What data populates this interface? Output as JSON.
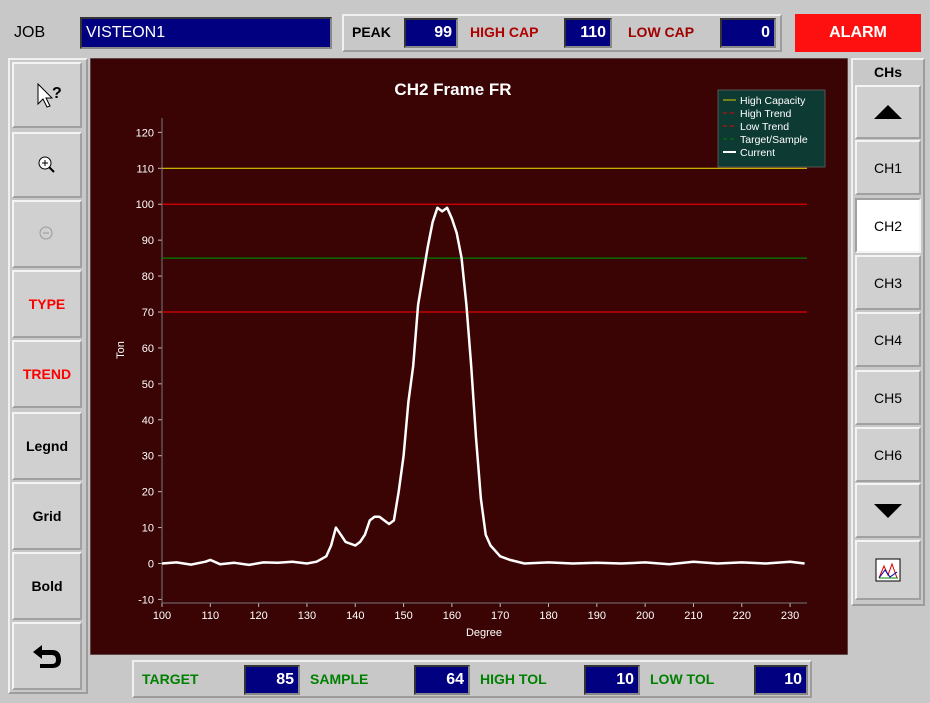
{
  "header": {
    "job_label": "JOB",
    "job": "VISTEON1",
    "peak_label": "PEAK",
    "peak": 99,
    "high_cap_label": "HIGH CAP",
    "high_cap": 110,
    "low_cap_label": "LOW CAP",
    "low_cap": 0,
    "alarm": "ALARM"
  },
  "toolbar": {
    "buttons": [
      {
        "label": "TYPE",
        "color": "#ff0000"
      },
      {
        "label": "TREND",
        "color": "#ff0000"
      },
      {
        "label": "Legnd",
        "color": "#000000"
      },
      {
        "label": "Grid",
        "color": "#000000"
      },
      {
        "label": "Bold",
        "color": "#000000"
      }
    ]
  },
  "channels": {
    "label": "CHs",
    "buttons": [
      "CH1",
      "CH2",
      "CH3",
      "CH4",
      "CH5",
      "CH6"
    ],
    "selected": 1
  },
  "footer": {
    "target_label": "TARGET",
    "target": 85,
    "sample_label": "SAMPLE",
    "sample": 64,
    "high_tol_label": "HIGH TOL",
    "high_tol": 10,
    "low_tol_label": "LOW TOL",
    "low_tol": 10
  },
  "chart_data": {
    "type": "line",
    "title": "CH2 Frame FR",
    "x_label": "Degree",
    "y_label": "Ton",
    "xlim": [
      100,
      233.5
    ],
    "ylim": [
      -11,
      124
    ],
    "xticks": [
      100,
      110,
      120,
      130,
      140,
      150,
      160,
      170,
      180,
      190,
      200,
      210,
      220,
      230
    ],
    "yticks": [
      -10,
      0,
      10,
      20,
      30,
      40,
      50,
      60,
      70,
      80,
      90,
      100,
      110,
      120
    ],
    "grid": false,
    "legend": "top-right",
    "reference_lines": [
      {
        "name": "High Capacity",
        "color": "#d8c800",
        "value": 110,
        "dashed": false
      },
      {
        "name": "High Trend",
        "color": "#e00000",
        "value": 100,
        "dashed": true
      },
      {
        "name": "Low Trend",
        "color": "#e00000",
        "value": 70,
        "dashed": true
      },
      {
        "name": "Target/Sample",
        "color": "#008000",
        "value": 85,
        "dashed": true
      }
    ],
    "x": [
      100,
      103,
      106,
      109,
      110,
      112,
      115,
      118,
      121,
      124,
      127,
      130,
      132,
      134,
      135,
      136,
      137,
      138,
      140,
      141,
      142,
      143,
      144,
      145,
      146,
      147,
      148,
      149,
      150,
      151,
      152,
      153,
      154,
      155,
      156,
      157,
      158,
      159,
      160,
      161,
      162,
      163,
      164,
      165,
      166,
      167,
      168,
      170,
      172,
      175,
      180,
      185,
      190,
      195,
      200,
      205,
      210,
      215,
      220,
      225,
      230,
      233
    ],
    "series": [
      {
        "name": "Current",
        "color": "#ffffff",
        "values": [
          0,
          0.3,
          -0.3,
          0.5,
          1,
          -0.2,
          0.2,
          -0.4,
          0.3,
          0.2,
          0.5,
          0,
          0.5,
          2,
          5,
          10,
          8,
          6,
          5,
          6,
          8,
          12,
          13,
          13,
          12,
          11,
          12,
          20,
          30,
          45,
          55,
          72,
          80,
          88,
          95,
          99,
          98,
          99,
          96,
          92,
          85,
          72,
          55,
          35,
          18,
          8,
          5,
          2,
          1,
          0,
          0.3,
          0,
          0.2,
          0,
          0.3,
          -0.2,
          0.5,
          0,
          0.3,
          0,
          0.5,
          0
        ]
      }
    ]
  }
}
